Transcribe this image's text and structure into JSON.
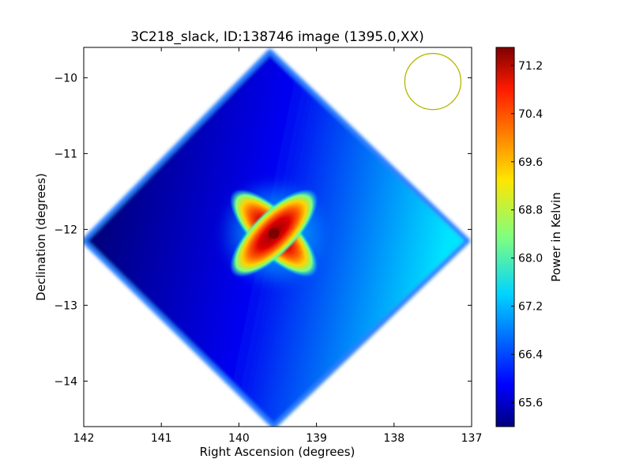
{
  "chart_data": {
    "type": "heatmap",
    "title": "3C218_slack, ID:138746 image (1395.0,XX)",
    "xlabel": "Right Ascension (degrees)",
    "ylabel": "Declination (degrees)",
    "colorbar_label": "Power in Kelvin",
    "x_axis": {
      "range": [
        142.0,
        137.0
      ],
      "reversed": true,
      "ticks": [
        142,
        141,
        140,
        139,
        138,
        137
      ],
      "tick_labels": [
        "142",
        "141",
        "140",
        "139",
        "138",
        "137"
      ]
    },
    "y_axis": {
      "range": [
        -14.6,
        -9.6
      ],
      "ticks": [
        -10,
        -11,
        -12,
        -13,
        -14
      ],
      "tick_labels": [
        "−10",
        "−11",
        "−12",
        "−13",
        "−14"
      ]
    },
    "colorbar": {
      "colormap": "jet",
      "range": [
        65.2,
        71.5
      ],
      "ticks": [
        65.6,
        66.4,
        67.2,
        68.0,
        68.8,
        69.6,
        70.4,
        71.2
      ],
      "tick_labels": [
        "65.6",
        "66.4",
        "67.2",
        "68.0",
        "68.8",
        "69.6",
        "70.4",
        "71.2"
      ]
    },
    "sky_region": {
      "shape": "diamond",
      "vertices": [
        [
          139.6,
          -9.65
        ],
        [
          137.05,
          -12.15
        ],
        [
          139.55,
          -14.6
        ],
        [
          142.0,
          -12.15
        ]
      ],
      "background_gradient": {
        "from": [
          141.7,
          -11.7
        ],
        "from_value": 65.2,
        "to": [
          137.4,
          -12.6
        ],
        "to_value": 67.4,
        "base_value": 65.9
      }
    },
    "source": {
      "center": [
        139.55,
        -12.05
      ],
      "peak_value": 71.5,
      "lobe_angles_deg": [
        45,
        135
      ],
      "lobe_length_deg": 0.75
    },
    "beam_marker": {
      "center": [
        137.5,
        -10.05
      ],
      "radius_deg": 0.37,
      "color": "#b5b500"
    },
    "grid": false
  }
}
